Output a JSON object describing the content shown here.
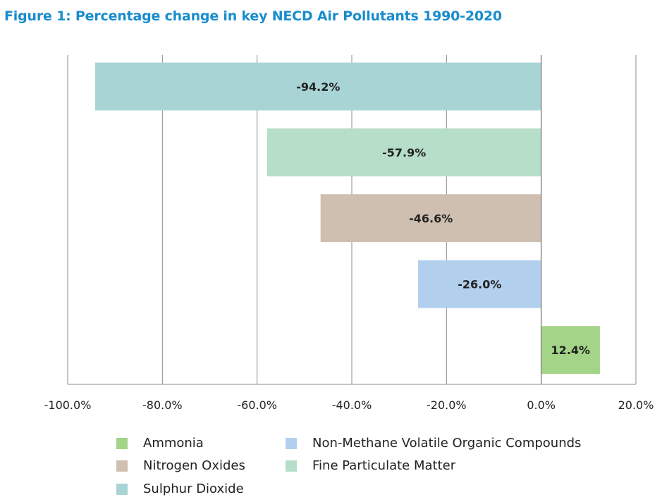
{
  "figure": {
    "title": "Figure 1: Percentage change in key NECD Air Pollutants 1990-2020"
  },
  "chart_data": {
    "type": "bar",
    "orientation": "horizontal",
    "title": "Figure 1: Percentage change in key NECD Air Pollutants 1990-2020",
    "xlabel": "",
    "ylabel": "",
    "xlim": [
      -100,
      20
    ],
    "x_tick_values": [
      -100,
      -80,
      -60,
      -40,
      -20,
      0,
      20
    ],
    "x_tick_labels": [
      "-100.0%",
      "-80.0%",
      "-60.0%",
      "-40.0%",
      "-20.0%",
      "0.0%",
      "20.0%"
    ],
    "grid": "vertical",
    "legend_position": "bottom",
    "categories": [
      "Sulphur Dioxide",
      "Fine Particulate Matter",
      "Nitrogen Oxides",
      "Non-Methane Volatile Organic Compounds",
      "Ammonia"
    ],
    "values": [
      -94.2,
      -57.9,
      -46.6,
      -26.0,
      12.4
    ],
    "data_labels": [
      "-94.2%",
      "-57.9%",
      "-46.6%",
      "-26.0%",
      "12.4%"
    ],
    "colors": [
      "#a8d4d5",
      "#b6dec9",
      "#cfbfb0",
      "#b3cfee",
      "#a3d487"
    ]
  },
  "legend": {
    "items": [
      {
        "label": "Ammonia",
        "color": "#a3d487"
      },
      {
        "label": "Non-Methane Volatile Organic Compounds",
        "color": "#b3cfee"
      },
      {
        "label": "Nitrogen Oxides",
        "color": "#cfbfb0"
      },
      {
        "label": "Fine Particulate Matter",
        "color": "#b6dec9"
      },
      {
        "label": "Sulphur Dioxide",
        "color": "#a8d4d5"
      }
    ]
  }
}
